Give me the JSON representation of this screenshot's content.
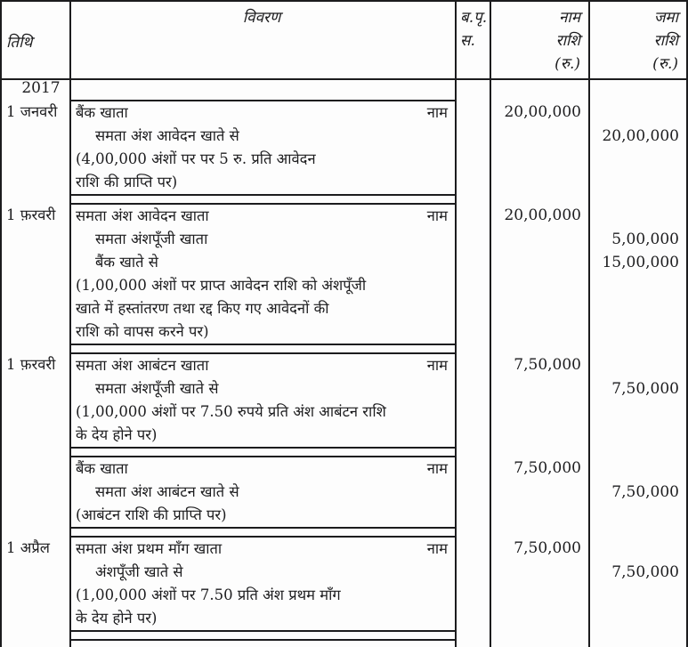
{
  "columns": {
    "date": "तिथि",
    "particulars": "विवरण",
    "folio_line1": "ब.पृ.",
    "folio_line2": "स.",
    "debit_line1": "नाम",
    "debit_line2": "राशि",
    "debit_line3": "(रु.)",
    "credit_line1": "जमा",
    "credit_line2": "राशि",
    "credit_line3": "(रु.)"
  },
  "debit_marker": "नाम",
  "entries": [
    {
      "pre_date": "2017",
      "date": "1 जनवरी",
      "lines": [
        {
          "text": "बैंक खाता",
          "right": "नाम",
          "debit": "20,00,000"
        },
        {
          "text": "समता अंश आवेदन खाते से",
          "indent": true,
          "credit": "20,00,000"
        },
        {
          "text": "(4,00,000 अंशों पर पर 5 रु. प्रति आवेदन"
        },
        {
          "text": "राशि की प्राप्ति पर)"
        }
      ]
    },
    {
      "date": "1 फ़रवरी",
      "lines": [
        {
          "text": "समता अंश आवेदन खाता",
          "right": "नाम",
          "debit": "20,00,000"
        },
        {
          "text": "समता अंशपूँजी खाता",
          "indent": true,
          "credit": "5,00,000"
        },
        {
          "text": "बैंक खाते से",
          "indent": true,
          "credit": "15,00,000"
        },
        {
          "text": "(1,00,000 अंशों पर प्राप्त आवेदन राशि को अंशपूँजी"
        },
        {
          "text": "खाते में हस्तांतरण तथा रद्द किए गए आवेदनों की"
        },
        {
          "text": "राशि को वापस करने पर)"
        }
      ]
    },
    {
      "date": "1 फ़रवरी",
      "lines": [
        {
          "text": "समता अंश आबंटन खाता",
          "right": "नाम",
          "debit": "7,50,000"
        },
        {
          "text": "समता अंशपूँजी खाते से",
          "indent": true,
          "credit": "7,50,000"
        },
        {
          "text": "(1,00,000 अंशों पर 7.50 रुपये प्रति अंश आबंटन राशि"
        },
        {
          "text": "के देय होने पर)"
        }
      ]
    },
    {
      "date": "",
      "lines": [
        {
          "text": "बैंक खाता",
          "right": "नाम",
          "debit": "7,50,000"
        },
        {
          "text": "समता अंश आबंटन खाते से",
          "indent": true,
          "credit": "7,50,000"
        },
        {
          "text": "(आबंटन राशि की प्राप्ति पर)"
        }
      ]
    },
    {
      "date": "1 अप्रैल",
      "lines": [
        {
          "text": "समता अंश प्रथम माँग खाता",
          "right": "नाम",
          "debit": "7,50,000"
        },
        {
          "text": "अंशपूँजी खाते से",
          "indent": true,
          "credit": "7,50,000"
        },
        {
          "text": "(1,00,000 अंशों पर 7.50 प्रति अंश प्रथम माँग"
        },
        {
          "text": "के देय होने पर)"
        }
      ]
    }
  ]
}
